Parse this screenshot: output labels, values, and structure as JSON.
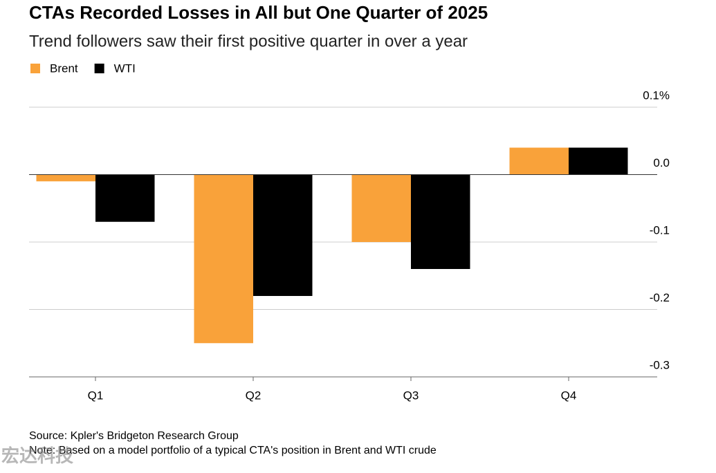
{
  "chart_data": {
    "type": "bar",
    "title": "CTAs Recorded Losses in All but One Quarter of 2025",
    "subtitle": "Trend followers saw their first positive quarter in over a year",
    "categories": [
      "Q1",
      "Q2",
      "Q3",
      "Q4"
    ],
    "series": [
      {
        "name": "Brent",
        "color": "#f9a23a",
        "values": [
          -0.01,
          -0.25,
          -0.1,
          0.04
        ]
      },
      {
        "name": "WTI",
        "color": "#000000",
        "values": [
          -0.07,
          -0.18,
          -0.14,
          0.04
        ]
      }
    ],
    "ylim": [
      -0.3,
      0.1
    ],
    "yticks": [
      {
        "value": 0.1,
        "label": "0.1%"
      },
      {
        "value": 0,
        "label": "0.0"
      },
      -0.1,
      -0.2,
      -0.3
    ],
    "grid": true,
    "legend": "top-left",
    "source": "Source: Kpler's Bridgeton Research Group",
    "note": "Note: Based on a model portfolio of a typical CTA's position in Brent and WTI crude",
    "watermark": "宏达科技"
  }
}
